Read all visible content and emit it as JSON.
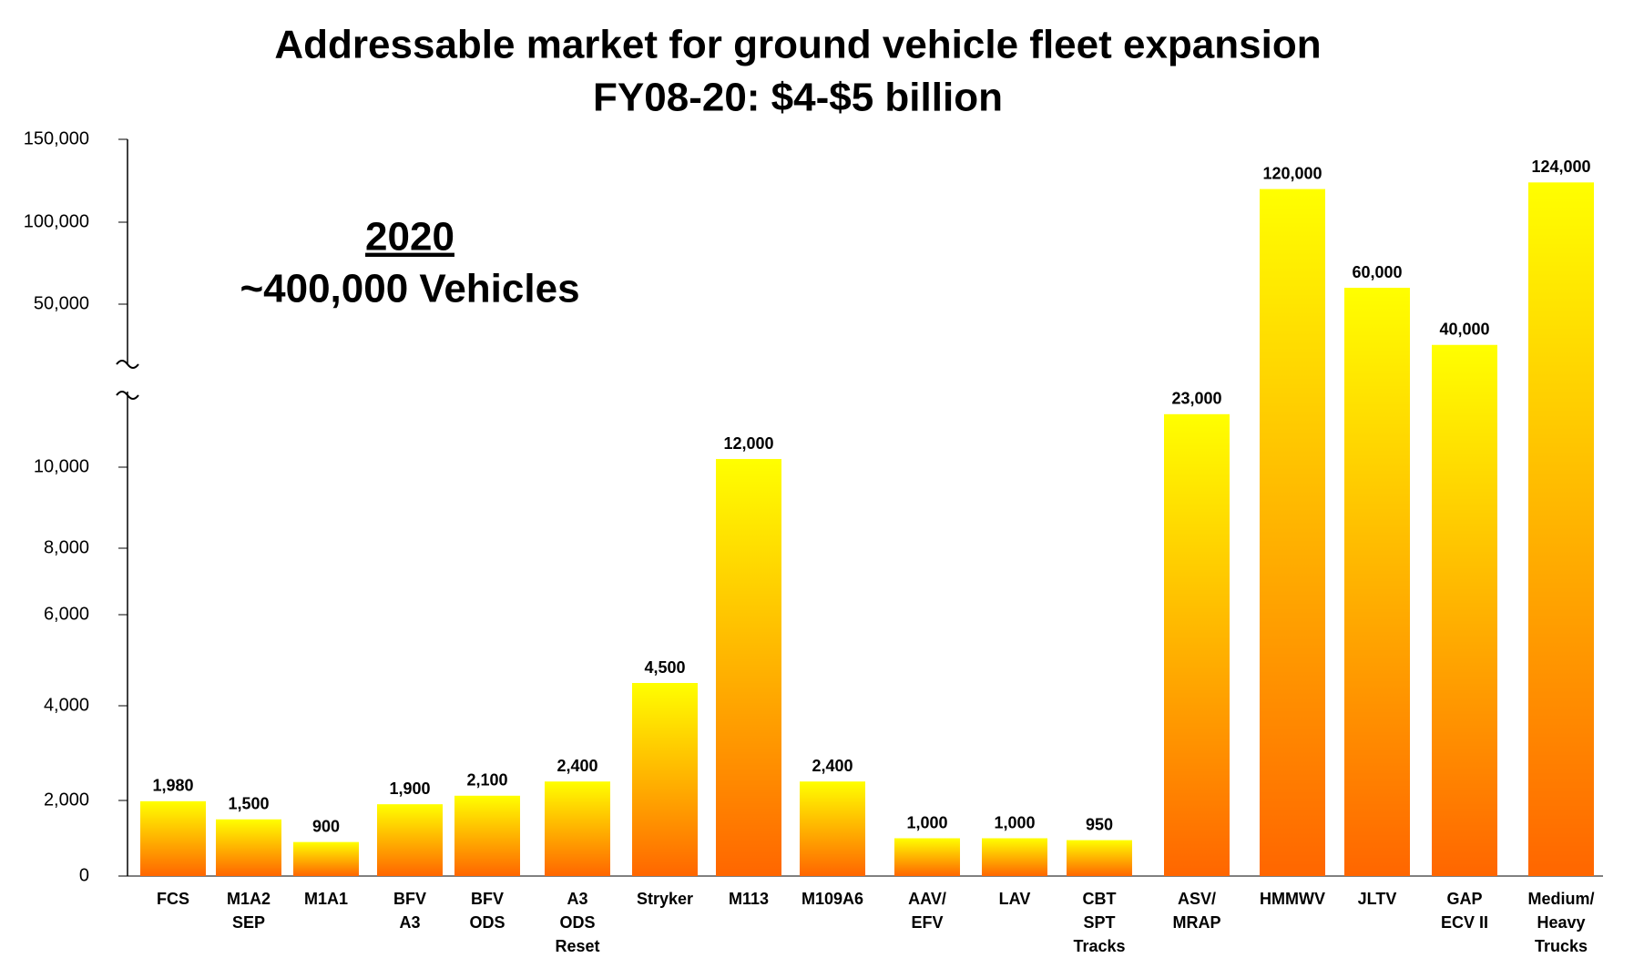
{
  "chart_data": {
    "type": "bar",
    "title": "Addressable market for ground vehicle fleet expansion",
    "subtitle": "FY08-20: $4-$5 billion",
    "annotations": [
      "2020",
      "~400,000 Vehicles"
    ],
    "categories": [
      [
        "FCS"
      ],
      [
        "M1A2",
        "SEP"
      ],
      [
        "M1A1"
      ],
      [
        "BFV",
        "A3"
      ],
      [
        "BFV",
        "ODS"
      ],
      [
        "A3",
        "ODS",
        "Reset"
      ],
      [
        "Stryker"
      ],
      [
        "M113"
      ],
      [
        "M109A6"
      ],
      [
        "AAV/",
        "EFV"
      ],
      [
        "LAV"
      ],
      [
        "CBT",
        "SPT",
        "Tracks"
      ],
      [
        "ASV/",
        "MRAP"
      ],
      [
        "HMMWV"
      ],
      [
        "JLTV"
      ],
      [
        "GAP",
        "ECV II"
      ],
      [
        "Medium/",
        "Heavy",
        "Trucks"
      ]
    ],
    "values": [
      1980,
      1500,
      900,
      1900,
      2100,
      2400,
      4500,
      12000,
      2400,
      1000,
      1000,
      950,
      23000,
      120000,
      60000,
      40000,
      124000
    ],
    "value_labels": [
      "1,980",
      "1,500",
      "900",
      "1,900",
      "2,100",
      "2,400",
      "4,500",
      "12,000",
      "2,400",
      "1,000",
      "1,000",
      "950",
      "23,000",
      "120,000",
      "60,000",
      "40,000",
      "124,000"
    ],
    "ylim": [
      0,
      150000
    ],
    "yticks": [
      0,
      {
        "value": 2000,
        "label": "2,000"
      },
      {
        "value": 4000,
        "label": "4,000"
      },
      {
        "value": 6000,
        "label": "6,000"
      },
      {
        "value": 8000,
        "label": "8,000"
      },
      {
        "value": 10000,
        "label": "10,000"
      },
      {
        "value": 50000,
        "label": "50,000"
      },
      {
        "value": 100000,
        "label": "100,000"
      },
      {
        "value": 150000,
        "label": "150,000"
      }
    ],
    "axis_break": true,
    "color": [
      "#ffff00",
      "#ff6600"
    ]
  }
}
